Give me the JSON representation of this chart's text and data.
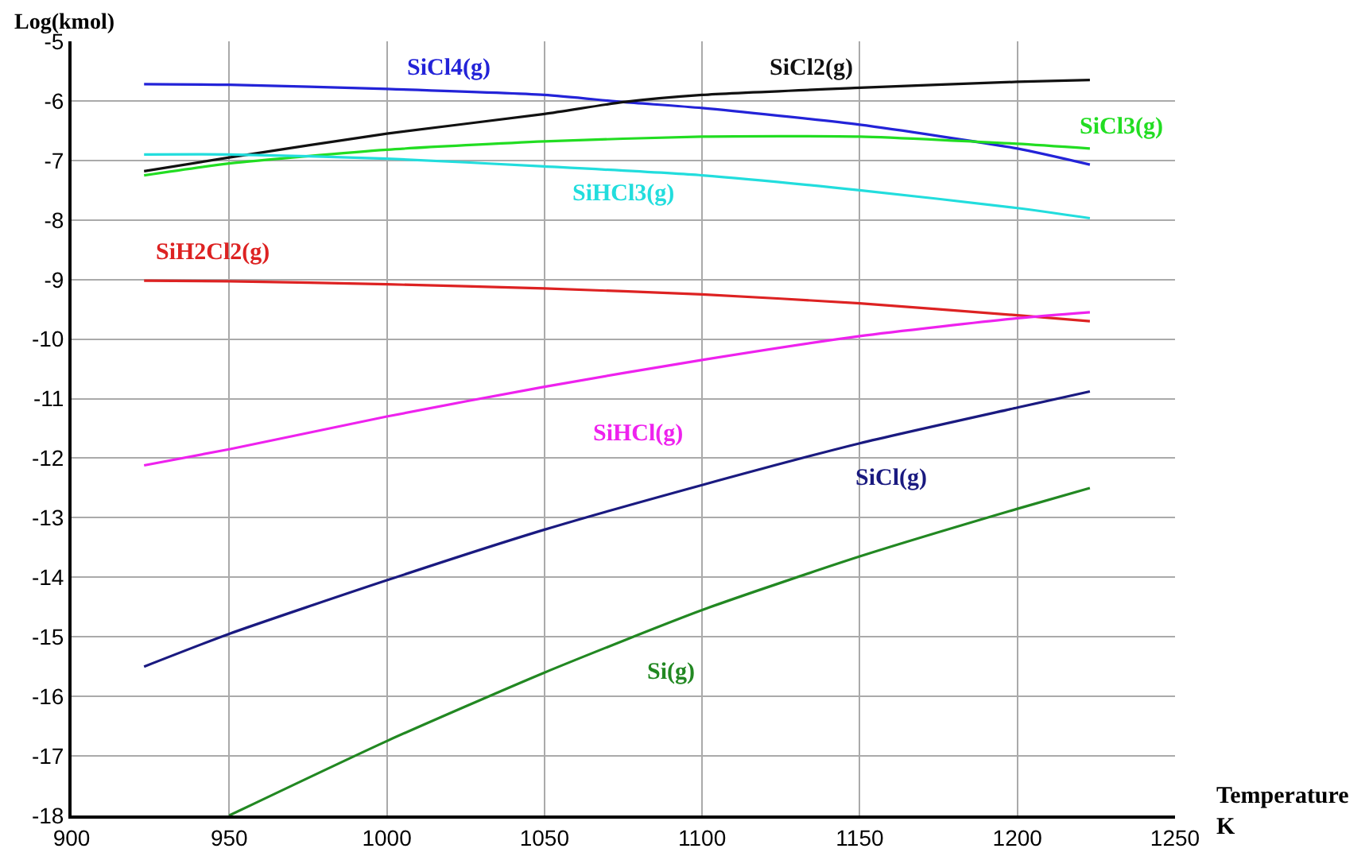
{
  "chart_data": {
    "type": "line",
    "xlabel": "Temperature\nK",
    "ylabel": "Log(kmol)",
    "xlim": [
      900,
      1250
    ],
    "xticks": [
      900,
      950,
      1000,
      1050,
      1100,
      1150,
      1200,
      1250
    ],
    "ylim": [
      -18,
      -5
    ],
    "yticks": [
      -18,
      -17,
      -16,
      -15,
      -14,
      -13,
      -12,
      -11,
      -10,
      -9,
      -8,
      -7,
      -6,
      -5
    ],
    "grid": true,
    "legend": false,
    "marker": "none",
    "line_style": "solid",
    "series": [
      {
        "name": "SiCl4(g)",
        "color": "#2323d8",
        "x": [
          923,
          950,
          1000,
          1050,
          1075,
          1100,
          1150,
          1200,
          1223
        ],
        "values": [
          -5.72,
          -5.73,
          -5.8,
          -5.9,
          -6.02,
          -6.12,
          -6.4,
          -6.8,
          -7.07
        ]
      },
      {
        "name": "SiCl2(g)",
        "color": "#111111",
        "x": [
          923,
          950,
          1000,
          1050,
          1075,
          1100,
          1150,
          1200,
          1223
        ],
        "values": [
          -7.18,
          -6.95,
          -6.55,
          -6.22,
          -6.02,
          -5.9,
          -5.78,
          -5.68,
          -5.65
        ]
      },
      {
        "name": "SiCl3(g)",
        "color": "#22dd22",
        "x": [
          923,
          950,
          1000,
          1050,
          1100,
          1150,
          1200,
          1223
        ],
        "values": [
          -7.25,
          -7.05,
          -6.82,
          -6.68,
          -6.6,
          -6.6,
          -6.72,
          -6.8
        ]
      },
      {
        "name": "SiHCl3(g)",
        "color": "#22dddd",
        "x": [
          923,
          950,
          1000,
          1050,
          1100,
          1150,
          1200,
          1223
        ],
        "values": [
          -6.9,
          -6.9,
          -6.97,
          -7.1,
          -7.25,
          -7.5,
          -7.8,
          -7.97
        ]
      },
      {
        "name": "SiH2Cl2(g)",
        "color": "#dd2222",
        "x": [
          923,
          950,
          1000,
          1050,
          1100,
          1150,
          1200,
          1223
        ],
        "values": [
          -9.02,
          -9.03,
          -9.08,
          -9.15,
          -9.25,
          -9.4,
          -9.6,
          -9.7
        ]
      },
      {
        "name": "SiHCl(g)",
        "color": "#ee22ee",
        "x": [
          923,
          950,
          1000,
          1050,
          1100,
          1150,
          1200,
          1223
        ],
        "values": [
          -12.12,
          -11.85,
          -11.3,
          -10.8,
          -10.35,
          -9.95,
          -9.65,
          -9.55
        ]
      },
      {
        "name": "SiCl(g)",
        "color": "#1a1a80",
        "x": [
          923,
          950,
          1000,
          1050,
          1100,
          1150,
          1200,
          1223
        ],
        "values": [
          -15.5,
          -14.95,
          -14.05,
          -13.2,
          -12.45,
          -11.75,
          -11.15,
          -10.88
        ]
      },
      {
        "name": "Si(g)",
        "color": "#228822",
        "x": [
          950,
          1000,
          1050,
          1100,
          1150,
          1200,
          1223
        ],
        "values": [
          -18,
          -16.75,
          -15.6,
          -14.55,
          -13.65,
          -12.85,
          -12.5
        ]
      }
    ]
  }
}
